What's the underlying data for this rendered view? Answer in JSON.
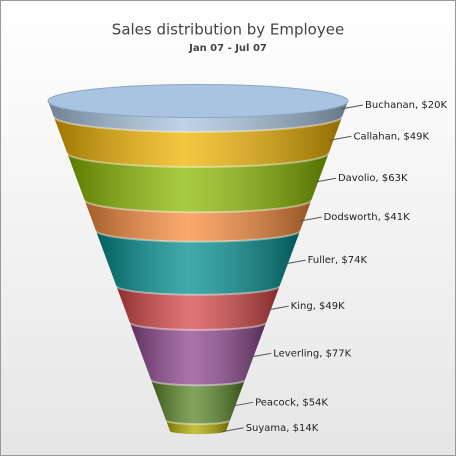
{
  "chart_data": {
    "type": "funnel",
    "title": "Sales distribution by Employee",
    "subtitle": "Jan 07 - Jul 07",
    "values": [
      20000,
      49000,
      63000,
      41000,
      74000,
      49000,
      77000,
      54000,
      14000
    ],
    "value_labels": [
      "Buchanan, $20K",
      "Callahan, $49K",
      "Davolio, $63K",
      "Dodsworth, $41K",
      "Fuller, $74K",
      "King, $49K",
      "Leverling, $77K",
      "Peacock, $54K",
      "Suyama, $14K"
    ],
    "colors": [
      "#a9c4e0",
      "#f0b400",
      "#8bba00",
      "#f98c3c",
      "#008e8e",
      "#d64646",
      "#8e468e",
      "#588526",
      "#b3aa00"
    ]
  }
}
